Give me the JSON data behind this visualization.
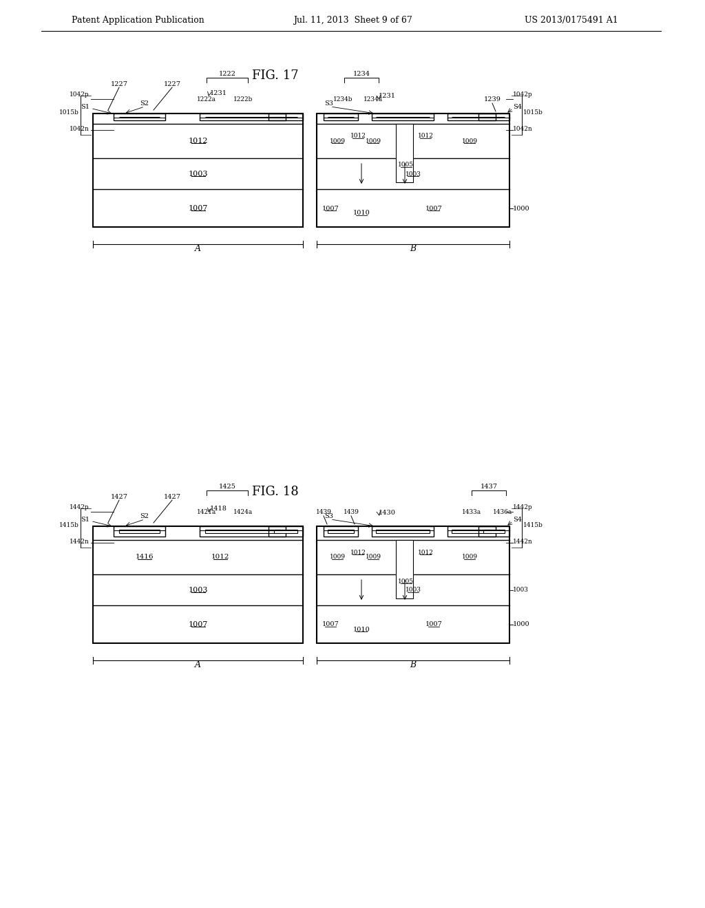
{
  "header_left": "Patent Application Publication",
  "header_center": "Jul. 11, 2013  Sheet 9 of 67",
  "header_right": "US 2013/0175491 A1",
  "fig17_title": "FIG. 17",
  "fig18_title": "FIG. 18",
  "bg_color": "#ffffff"
}
